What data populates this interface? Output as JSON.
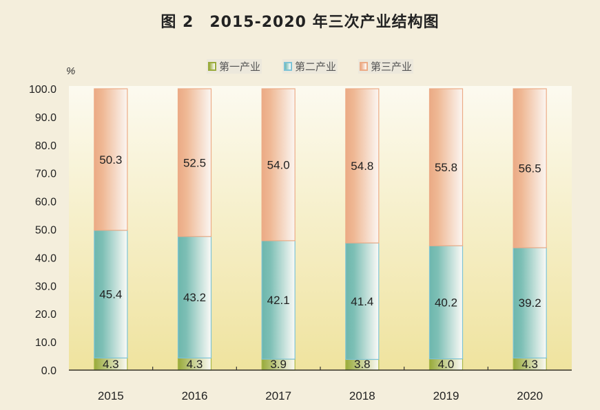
{
  "chart_data": {
    "type": "bar",
    "stacked": true,
    "title": "图 2　2015-2020 年三次产业结构图",
    "ylabel": "%",
    "ylim": [
      0,
      100
    ],
    "yticks": [
      "0.0",
      "10.0",
      "20.0",
      "30.0",
      "40.0",
      "50.0",
      "60.0",
      "70.0",
      "80.0",
      "90.0",
      "100.0"
    ],
    "categories": [
      "2015",
      "2016",
      "2017",
      "2018",
      "2019",
      "2020"
    ],
    "legend_position": "top",
    "series": [
      {
        "name": "第一产业",
        "values": [
          4.3,
          4.3,
          3.9,
          3.8,
          4.0,
          4.3
        ],
        "color": "#9aab3c"
      },
      {
        "name": "第二产业",
        "values": [
          45.4,
          43.2,
          42.1,
          41.4,
          40.2,
          39.2
        ],
        "color": "#6fb8b0"
      },
      {
        "name": "第三产业",
        "values": [
          50.3,
          52.5,
          54.0,
          54.8,
          55.8,
          56.5
        ],
        "color": "#ecab86"
      }
    ]
  }
}
